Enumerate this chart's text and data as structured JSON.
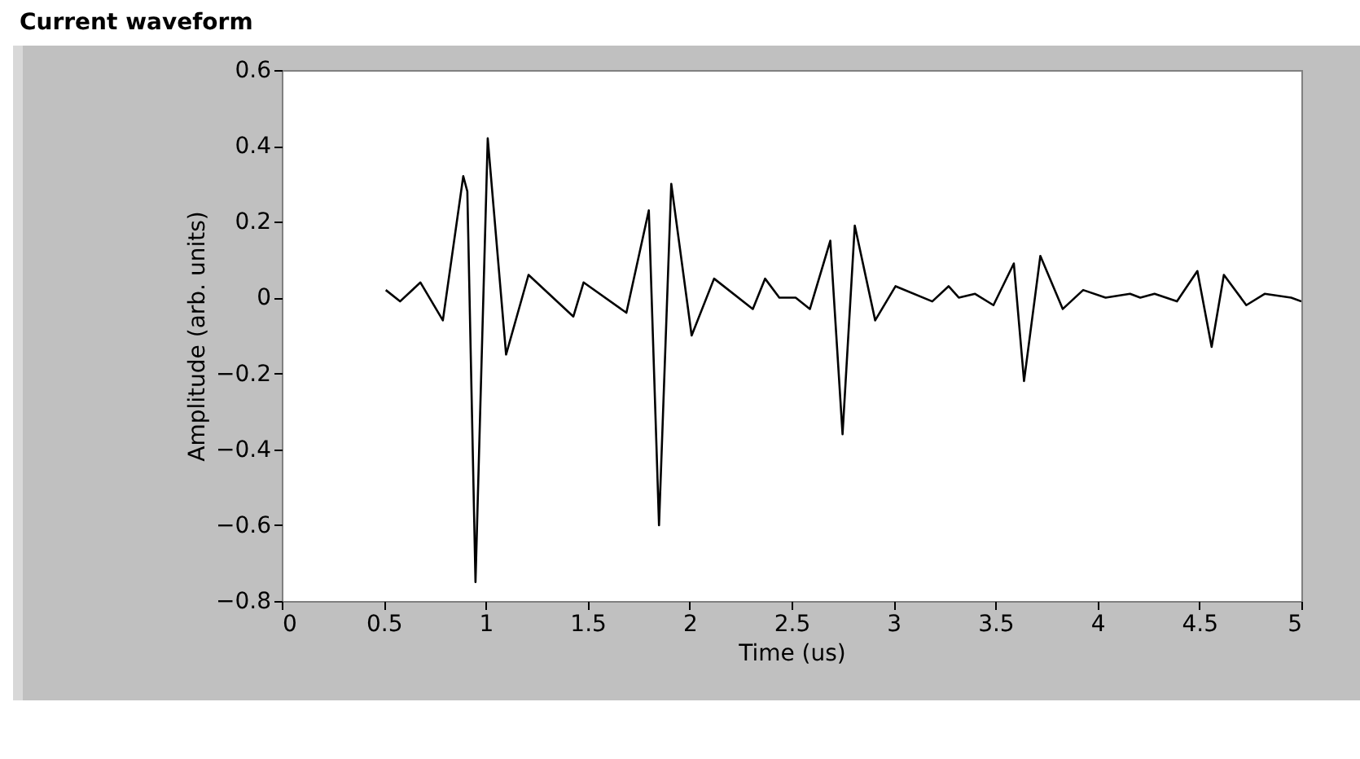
{
  "chart_data": {
    "type": "line",
    "title": "Current waveform",
    "xlabel": "Time (us)",
    "ylabel": "Amplitude (arb. units)",
    "xlim": [
      0,
      5
    ],
    "xticks": [
      0,
      0.5,
      1,
      1.5,
      2,
      2.5,
      3,
      3.5,
      4,
      4.5,
      5
    ],
    "ylim": [
      -0.8,
      0.6
    ],
    "yticks": [
      -0.8,
      -0.6,
      -0.4,
      -0.2,
      0,
      0.2,
      0.4,
      0.6
    ],
    "grid": false,
    "legend": false,
    "marker": "none",
    "line_style": "solid",
    "series": [
      {
        "color": "#000000",
        "x": [
          0.51,
          0.58,
          0.68,
          0.79,
          0.89,
          0.91,
          0.95,
          1.01,
          1.1,
          1.21,
          1.43,
          1.48,
          1.69,
          1.8,
          1.85,
          1.91,
          2.01,
          2.12,
          2.31,
          2.37,
          2.44,
          2.52,
          2.59,
          2.69,
          2.75,
          2.81,
          2.91,
          3.01,
          3.19,
          3.27,
          3.32,
          3.4,
          3.49,
          3.59,
          3.64,
          3.72,
          3.83,
          3.93,
          4.04,
          4.16,
          4.21,
          4.28,
          4.39,
          4.49,
          4.56,
          4.62,
          4.73,
          4.82,
          4.95,
          5
        ],
        "values": [
          0.02,
          -0.01,
          0.04,
          -0.06,
          0.32,
          0.28,
          -0.75,
          0.42,
          -0.15,
          0.06,
          -0.05,
          0.04,
          -0.04,
          0.23,
          -0.6,
          0.3,
          -0.1,
          0.05,
          -0.03,
          0.05,
          0,
          0,
          -0.03,
          0.15,
          -0.36,
          0.19,
          -0.06,
          0.03,
          -0.01,
          0.03,
          0,
          0.01,
          -0.02,
          0.09,
          -0.22,
          0.11,
          -0.03,
          0.02,
          0,
          0.01,
          0,
          0.01,
          -0.01,
          0.07,
          -0.13,
          0.06,
          -0.02,
          0.01,
          0,
          -0.01
        ]
      }
    ]
  }
}
